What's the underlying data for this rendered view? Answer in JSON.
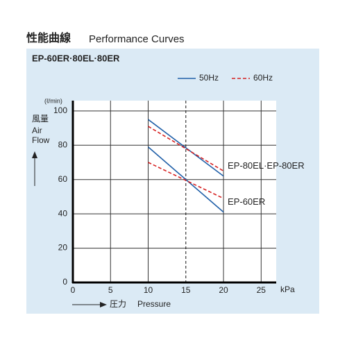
{
  "chart_data": {
    "type": "line",
    "title": "性能曲線",
    "title_en": "Performance Curves",
    "subtitle": "EP-60ER·80EL·80ER",
    "y_unit": "(ℓ/min)",
    "y_label": [
      "風量",
      "Air",
      "Flow"
    ],
    "x_label_jp": "圧力",
    "x_label": "Pressure",
    "x_unit": "kPa",
    "x": [
      10,
      20
    ],
    "models": [
      "EP-80EL·EP-80ER",
      "EP-60ER"
    ],
    "series": [
      {
        "name": "50Hz",
        "color": "#1f5fa8",
        "dashed": false,
        "curves": [
          [
            95,
            62
          ],
          [
            79,
            41
          ]
        ]
      },
      {
        "name": "60Hz",
        "color": "#d62020",
        "dashed": true,
        "curves": [
          [
            91,
            65
          ],
          [
            70,
            49
          ]
        ]
      }
    ],
    "reference_x": 15,
    "xlim": [
      0,
      27
    ],
    "xticks": [
      0,
      5,
      10,
      15,
      20,
      25
    ],
    "ylim": [
      0,
      106
    ],
    "yticks": [
      0,
      20,
      40,
      60,
      80,
      100
    ],
    "grid": true
  }
}
